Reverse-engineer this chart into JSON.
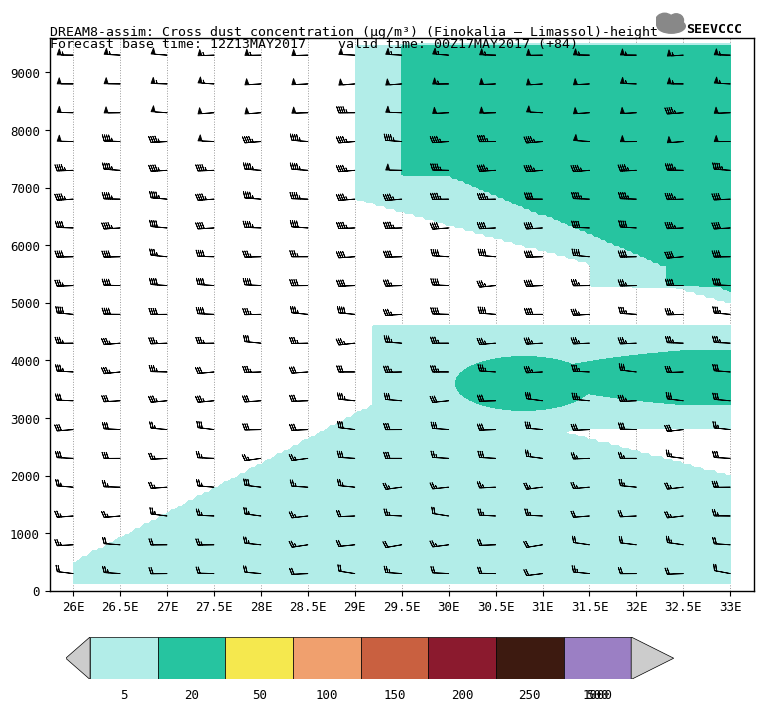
{
  "title_line1": "DREAM8-assim: Cross dust concentration (μg/m³) (Finokalia – Limassol)-height",
  "title_line2": "Forecast base time: 12Z13MAY2017    valid time: 00Z17MAY2017 (+84)",
  "xlabel_ticks": [
    "26E",
    "26.5E",
    "27E",
    "27.5E",
    "28E",
    "28.5E",
    "29E",
    "29.5E",
    "30E",
    "30.5E",
    "31E",
    "31.5E",
    "32E",
    "32.5E",
    "33E"
  ],
  "xlabel_vals": [
    26.0,
    26.5,
    27.0,
    27.5,
    28.0,
    28.5,
    29.0,
    29.5,
    30.0,
    30.5,
    31.0,
    31.5,
    32.0,
    32.5,
    33.0
  ],
  "ylabel_ticks": [
    0,
    1000,
    2000,
    3000,
    4000,
    5000,
    6000,
    7000,
    8000,
    9000
  ],
  "xlim": [
    25.75,
    33.25
  ],
  "ylim": [
    0,
    9600
  ],
  "colorbar_levels": [
    5,
    20,
    50,
    100,
    150,
    200,
    250,
    500,
    1000
  ],
  "colorbar_colors": [
    "#b2ede8",
    "#26c4a0",
    "#f5e84e",
    "#f0a06e",
    "#c96040",
    "#8b1a2e",
    "#3d1a10",
    "#9b7fc4"
  ],
  "background_color": "#ffffff",
  "plot_bg": "#ffffff",
  "wind_barb_color": "#000000"
}
